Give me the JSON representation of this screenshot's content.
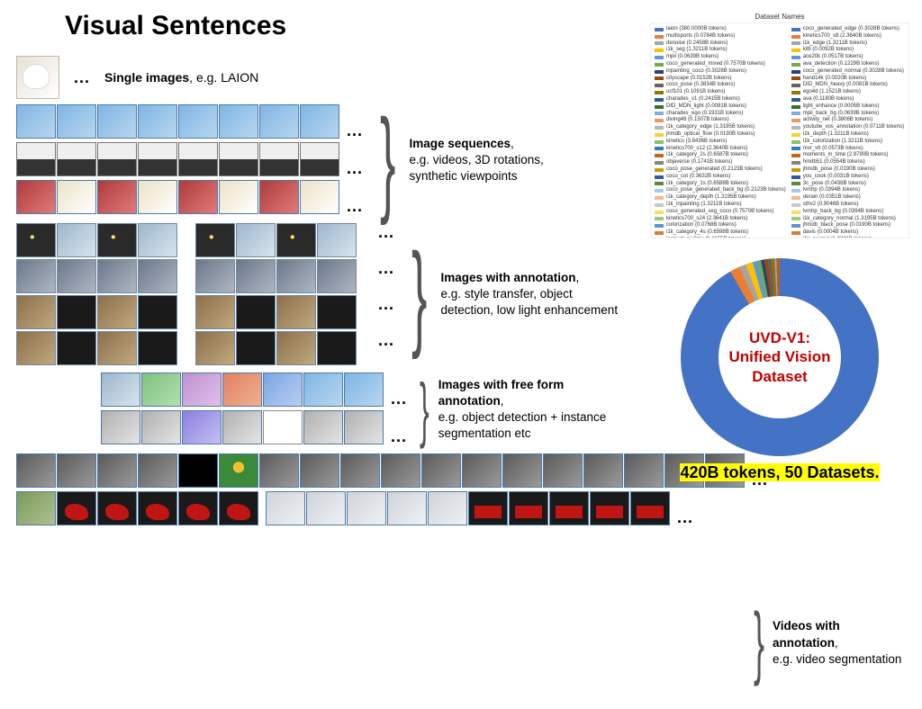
{
  "title": "Visual Sentences",
  "sections": {
    "single": {
      "label_bold": "Single images",
      "label_rest": ", e.g. LAION"
    },
    "sequences": {
      "label_bold": "Image sequences",
      "label_rest": ",\ne.g. videos, 3D rotations, synthetic viewpoints"
    },
    "annotation": {
      "label_bold": "Images with annotation",
      "label_rest": ",\ne.g. style transfer, object detection, low light enhancement"
    },
    "freeform": {
      "label_bold": "Images with free form annotation",
      "label_rest": ",\n e.g. object detection + instance segmentation etc"
    },
    "video": {
      "label_bold": "Videos with annotation",
      "label_rest": ",\ne.g. video segmentation"
    }
  },
  "ellipsis": "...",
  "legend": {
    "title": "Dataset Names",
    "left": [
      {
        "c": "#4472c4",
        "t": "laion (380.0000B tokens)"
      },
      {
        "c": "#ed7d31",
        "t": "multisports (0.0784B tokens)"
      },
      {
        "c": "#a5a5a5",
        "t": "denoise (0.2458B tokens)"
      },
      {
        "c": "#ffc000",
        "t": "i1k_seg (1.3211B tokens)"
      },
      {
        "c": "#5b9bd5",
        "t": "mpii (0.0639B tokens)"
      },
      {
        "c": "#70ad47",
        "t": "coco_generated_mixed (0.7570B tokens)"
      },
      {
        "c": "#264478",
        "t": "inpainting_coco (0.3028B tokens)"
      },
      {
        "c": "#9e480e",
        "t": "cityscape (0.0152B tokens)"
      },
      {
        "c": "#636363",
        "t": "coco_pose (0.3834B tokens)"
      },
      {
        "c": "#997300",
        "t": "ucf101 (0.1091B tokens)"
      },
      {
        "c": "#255e91",
        "t": "charades_v1 (0.2415B tokens)"
      },
      {
        "c": "#43682b",
        "t": "DID_MDN_light (0.0081B tokens)"
      },
      {
        "c": "#7cafdd",
        "t": "charades_ego (0.1931B tokens)"
      },
      {
        "c": "#f1975a",
        "t": "diving48 (0.1507B tokens)"
      },
      {
        "c": "#b7b7b7",
        "t": "i1k_category_edge (1.3195B tokens)"
      },
      {
        "c": "#ffcd33",
        "t": "jhmdb_optical_flow (0.0190B tokens)"
      },
      {
        "c": "#8cc168",
        "t": "kinetics (3.8436B tokens)"
      },
      {
        "c": "#327dc2",
        "t": "kinetics700_s12 (2.3640B tokens)"
      },
      {
        "c": "#d26012",
        "t": "i1k_category_2s (0.6587B tokens)"
      },
      {
        "c": "#848484",
        "t": "objaverse (0.1741B tokens)"
      },
      {
        "c": "#cc9a00",
        "t": "coco_pose_generated (0.2123B tokens)"
      },
      {
        "c": "#335aa1",
        "t": "coco_cot (0.3632B tokens)"
      },
      {
        "c": "#5a8a39",
        "t": "i1k_category_1s (0.6588B tokens)"
      },
      {
        "c": "#a6c9ec",
        "t": "coco_pose_generated_back_bg (0.2123B tokens)"
      },
      {
        "c": "#f6b88c",
        "t": "i1k_category_depth (1.3195B tokens)"
      },
      {
        "c": "#c9c9c9",
        "t": "i1k_inpainting (1.3211B tokens)"
      },
      {
        "c": "#ffd966",
        "t": "coco_generated_seg_coco (0.7570B tokens)"
      },
      {
        "c": "#9dcb7e",
        "t": "kinetics700_s24 (2.3641B tokens)"
      },
      {
        "c": "#5e95d1",
        "t": "colorization (0.0768B tokens)"
      },
      {
        "c": "#e1782f",
        "t": "i1k_category_4s (0.6598B tokens)"
      },
      {
        "c": "#9a9a9a",
        "t": "instruct_pix2pix (0.4155B tokens)"
      },
      {
        "c": "#e0b000",
        "t": "inpainting_ik (7.2689B tokens)"
      },
      {
        "c": "#3e6eb3",
        "t": "i1k_category_seg (1.3195B tokens)"
      },
      {
        "c": "#6b9c47",
        "t": "i1k_cot (3.3027B tokens)"
      },
      {
        "c": "#b9d6f1",
        "t": "mpii_cot (0.0500B tokens)"
      },
      {
        "c": "#f9c9a3",
        "t": "DID_MDN_medium (0.0081B tokens)"
      }
    ],
    "right": [
      {
        "c": "#4472c4",
        "t": "coco_generated_edge (0.3028B tokens)"
      },
      {
        "c": "#ed7d31",
        "t": "kinetics700_s8 (2.3640B tokens)"
      },
      {
        "c": "#a5a5a5",
        "t": "i1k_edge (1.3211B tokens)"
      },
      {
        "c": "#ffc000",
        "t": "kitti (0.0092B tokens)"
      },
      {
        "c": "#5b9bd5",
        "t": "ace20k (0.0517B tokens)"
      },
      {
        "c": "#70ad47",
        "t": "ava_detection (0.1229B tokens)"
      },
      {
        "c": "#264478",
        "t": "coco_generated_normal (0.3028B tokens)"
      },
      {
        "c": "#9e480e",
        "t": "hand14k (0.0020B tokens)"
      },
      {
        "c": "#636363",
        "t": "DID_MDN_heavy (0.0081B tokens)"
      },
      {
        "c": "#997300",
        "t": "ego4d (1.1521B tokens)"
      },
      {
        "c": "#255e91",
        "t": "ava (0.1180B tokens)"
      },
      {
        "c": "#43682b",
        "t": "light_enhance (0.0005B tokens)"
      },
      {
        "c": "#7cafdd",
        "t": "mpii_back_bg (0.0639B tokens)"
      },
      {
        "c": "#f1975a",
        "t": "activity_net (0.3806B tokens)"
      },
      {
        "c": "#b7b7b7",
        "t": "youtube_vos_annotation (0.0711B tokens)"
      },
      {
        "c": "#ffcd33",
        "t": "i1k_depth (1.3211B tokens)"
      },
      {
        "c": "#8cc168",
        "t": "i1k_colorization (1.3211B tokens)"
      },
      {
        "c": "#327dc2",
        "t": "msr_vtt (0.0573B tokens)"
      },
      {
        "c": "#d26012",
        "t": "moments_in_time (2.9790B tokens)"
      },
      {
        "c": "#848484",
        "t": "hmdb51 (0.0554B tokens)"
      },
      {
        "c": "#cc9a00",
        "t": "jhmdb_pose (0.0190B tokens)"
      },
      {
        "c": "#335aa1",
        "t": "you_cook (0.0031B tokens)"
      },
      {
        "c": "#5a8a39",
        "t": "3c_pose (0.0438B tokens)"
      },
      {
        "c": "#a6c9ec",
        "t": "lvmhp (0.0394B tokens)"
      },
      {
        "c": "#f6b88c",
        "t": "derain (0.0351B tokens)"
      },
      {
        "c": "#c9c9c9",
        "t": "sthv2 (0.9046B tokens)"
      },
      {
        "c": "#ffd966",
        "t": "lvmhp_back_bg (0.0394B tokens)"
      },
      {
        "c": "#9dcb7e",
        "t": "i1k_category_normal (1.3195B tokens)"
      },
      {
        "c": "#5e95d1",
        "t": "jhmdb_black_pose (0.0190B tokens)"
      },
      {
        "c": "#e1782f",
        "t": "davis (0.0004B tokens)"
      },
      {
        "c": "#9a9a9a",
        "t": "i1k_normal (1.3211B tokens)"
      },
      {
        "c": "#e0b000",
        "t": "youtube_vos_clips (0.0637B tokens)"
      },
      {
        "c": "#3e6eb3",
        "t": "coco_generated_depth (0.3028B tokens)"
      },
      {
        "c": "#6b9c47",
        "t": "vip_seg (0.0645B tokens)"
      },
      {
        "c": "#b9d6f1",
        "t": "co3d_seq (0.2288B tokens)"
      },
      {
        "c": "#f9c9a3",
        "t": "jester (0.6065B tokens)"
      }
    ]
  },
  "donut": {
    "center_line1": "UVD-V1:",
    "center_line2": "Unified Vision",
    "center_line3": "Dataset",
    "caption_hl": "420B tokens, 50 Datasets.",
    "dominant_color": "#4472c4",
    "dominant_share_deg": 330
  }
}
